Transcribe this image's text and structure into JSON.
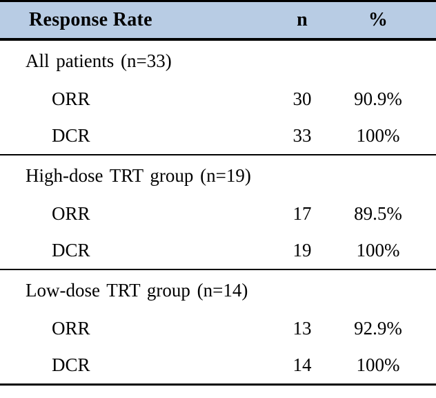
{
  "colors": {
    "header_bg": "#b8cce4",
    "rule": "#000000",
    "background": "#ffffff",
    "text": "#000000"
  },
  "table": {
    "header": {
      "response_rate": "Response Rate",
      "n": "n",
      "percent": "%"
    },
    "sections": [
      {
        "title": "All patients (n=33)",
        "rows": [
          {
            "label": "ORR",
            "n": "30",
            "percent": "90.9%"
          },
          {
            "label": "DCR",
            "n": "33",
            "percent": "100%"
          }
        ]
      },
      {
        "title": "High-dose TRT group (n=19)",
        "rows": [
          {
            "label": "ORR",
            "n": "17",
            "percent": "89.5%"
          },
          {
            "label": "DCR",
            "n": "19",
            "percent": "100%"
          }
        ]
      },
      {
        "title": "Low-dose TRT group (n=14)",
        "rows": [
          {
            "label": "ORR",
            "n": "13",
            "percent": "92.9%"
          },
          {
            "label": "DCR",
            "n": "14",
            "percent": "100%"
          }
        ]
      }
    ]
  },
  "chart_data": {
    "type": "table",
    "title": "Response Rate",
    "columns": [
      "Response Rate",
      "n",
      "%"
    ],
    "groups": [
      {
        "group": "All patients",
        "group_n": 33,
        "rows": [
          {
            "measure": "ORR",
            "n": 30,
            "percent": 90.9
          },
          {
            "measure": "DCR",
            "n": 33,
            "percent": 100
          }
        ]
      },
      {
        "group": "High-dose TRT group",
        "group_n": 19,
        "rows": [
          {
            "measure": "ORR",
            "n": 17,
            "percent": 89.5
          },
          {
            "measure": "DCR",
            "n": 19,
            "percent": 100
          }
        ]
      },
      {
        "group": "Low-dose TRT group",
        "group_n": 14,
        "rows": [
          {
            "measure": "ORR",
            "n": 13,
            "percent": 92.9
          },
          {
            "measure": "DCR",
            "n": 14,
            "percent": 100
          }
        ]
      }
    ]
  }
}
